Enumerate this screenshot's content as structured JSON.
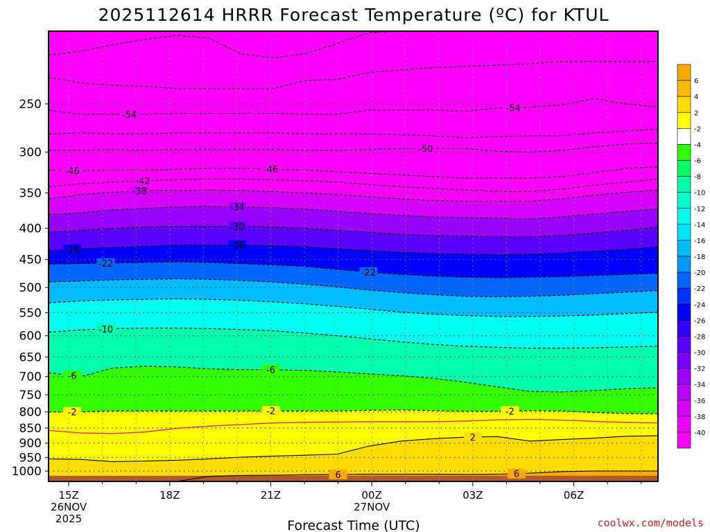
{
  "chart_data": {
    "type": "heatmap",
    "title": "2025112614 HRRR Forecast Temperature (ºC) for KTUL",
    "xlabel": "Forecast Time (UTC)",
    "ylabel": "",
    "credit": "coolwx.com/models",
    "x_range_hours": [
      -0.6,
      17.5
    ],
    "y_range_hpa": [
      1040,
      190
    ],
    "y_ticks": [
      250,
      300,
      350,
      400,
      450,
      500,
      550,
      600,
      650,
      700,
      750,
      800,
      850,
      900,
      950,
      1000
    ],
    "x_ticks": [
      {
        "hour": 0,
        "label": "15Z",
        "date": "26NOV",
        "year": "2025"
      },
      {
        "hour": 3,
        "label": "18Z",
        "date": "",
        "year": ""
      },
      {
        "hour": 6,
        "label": "21Z",
        "date": "",
        "year": ""
      },
      {
        "hour": 9,
        "label": "00Z",
        "date": "27NOV",
        "year": ""
      },
      {
        "hour": 12,
        "label": "03Z",
        "date": "",
        "year": ""
      },
      {
        "hour": 15,
        "label": "06Z",
        "date": "",
        "year": ""
      }
    ],
    "colorbar": {
      "levels": [
        -40,
        -38,
        -36,
        -34,
        -32,
        -30,
        -28,
        -26,
        -24,
        -22,
        -20,
        -18,
        -16,
        -14,
        -12,
        -10,
        -8,
        -6,
        -4,
        -2,
        2,
        4,
        6
      ],
      "colors": [
        "#ff00ff",
        "#ee00ff",
        "#d500ff",
        "#b800ff",
        "#9a00ff",
        "#7c00ff",
        "#5a00ff",
        "#3300ff",
        "#0000ff",
        "#0033ff",
        "#0066ff",
        "#0099ff",
        "#00bbff",
        "#00e5ff",
        "#00ffee",
        "#00ffcc",
        "#00ffaa",
        "#00ff66",
        "#33ff00",
        "#ffffff",
        "#ffff00",
        "#ffdd00",
        "#ffbb00",
        "#ffaa00"
      ]
    },
    "ground": {
      "pressure_hpa": 1018,
      "color": "#b05a2a"
    },
    "isotherms": [
      {
        "temp": -58,
        "p": [
          208,
          205,
          200,
          196,
          193,
          195,
          207,
          210,
          207,
          199,
          191,
          190,
          190,
          190,
          190,
          190,
          190,
          190,
          190,
          190
        ],
        "labels": []
      },
      {
        "temp": -56,
        "p": [
          226,
          231,
          233,
          234,
          236,
          236,
          236,
          236,
          229,
          228,
          222,
          220,
          218,
          217,
          216,
          215,
          213,
          213,
          213,
          213
        ],
        "labels": []
      },
      {
        "temp": -54,
        "p": [
          256,
          260,
          260,
          260,
          259,
          259,
          259,
          259,
          260,
          260,
          256,
          256,
          256,
          257,
          254,
          253,
          251,
          245,
          250,
          253
        ],
        "labels": [
          {
            "hour": 1.8,
            "text": "-54"
          },
          {
            "hour": 13.2,
            "text": "-54"
          }
        ]
      },
      {
        "temp": -52,
        "p": [
          280,
          279,
          280,
          280,
          279,
          279,
          279,
          279,
          280,
          280,
          280,
          281,
          282,
          284,
          283,
          282,
          282,
          279,
          277,
          275
        ],
        "labels": []
      },
      {
        "temp": -50,
        "p": [
          298,
          298,
          297,
          298,
          297,
          297,
          297,
          297,
          298,
          298,
          297,
          296,
          296,
          296,
          299,
          300,
          298,
          294,
          291,
          290
        ],
        "labels": [
          {
            "hour": 10.6,
            "text": "-50"
          }
        ]
      },
      {
        "temp": -46,
        "p": [
          321,
          322,
          321,
          321,
          320,
          319,
          319,
          320,
          321,
          323,
          325,
          327,
          329,
          331,
          331,
          331,
          329,
          324,
          319,
          317
        ],
        "labels": [
          {
            "hour": 0.1,
            "text": "-46"
          },
          {
            "hour": 6,
            "text": "-46"
          }
        ]
      },
      {
        "temp": -42,
        "p": [
          342,
          338,
          336,
          334,
          333,
          332,
          332,
          333,
          334,
          336,
          339,
          342,
          344,
          346,
          348,
          348,
          345,
          340,
          336,
          332
        ],
        "labels": [
          {
            "hour": 2.2,
            "text": "-42"
          }
        ]
      },
      {
        "temp": -38,
        "p": [
          358,
          352,
          349,
          347,
          347,
          346,
          347,
          348,
          350,
          352,
          355,
          358,
          360,
          361,
          361,
          361,
          358,
          353,
          349,
          346
        ],
        "labels": [
          {
            "hour": 2.1,
            "text": "-38"
          }
        ]
      },
      {
        "temp": -34,
        "p": [
          380,
          377,
          373,
          371,
          369,
          368,
          369,
          370,
          372,
          375,
          378,
          381,
          383,
          384,
          385,
          386,
          383,
          379,
          375,
          372
        ],
        "labels": [
          {
            "hour": 5,
            "text": "-34"
          }
        ]
      },
      {
        "temp": -30,
        "p": [
          406,
          403,
          400,
          398,
          397,
          397,
          397,
          398,
          400,
          403,
          406,
          409,
          411,
          412,
          413,
          413,
          411,
          407,
          403,
          398
        ],
        "labels": [
          {
            "hour": 5,
            "text": "-30"
          }
        ]
      },
      {
        "temp": -26,
        "p": [
          435,
          432,
          430,
          428,
          426,
          426,
          426,
          427,
          429,
          432,
          435,
          438,
          440,
          441,
          442,
          441,
          439,
          436,
          433,
          429
        ],
        "labels": [
          {
            "hour": 0.1,
            "text": "-26"
          },
          {
            "hour": 5,
            "text": "-26"
          }
        ]
      },
      {
        "temp": -22,
        "p": [
          458,
          457,
          456,
          455,
          454,
          455,
          457,
          459,
          462,
          467,
          472,
          476,
          479,
          481,
          482,
          481,
          480,
          478,
          476,
          474
        ],
        "labels": [
          {
            "hour": 1.1,
            "text": "-22"
          },
          {
            "hour": 8.9,
            "text": "-22"
          }
        ]
      },
      {
        "temp": -18,
        "p": [
          490,
          488,
          486,
          485,
          484,
          485,
          487,
          490,
          494,
          499,
          505,
          510,
          514,
          517,
          518,
          517,
          515,
          512,
          509,
          506
        ],
        "labels": []
      },
      {
        "temp": -14,
        "p": [
          530,
          526,
          524,
          523,
          522,
          523,
          525,
          528,
          532,
          537,
          543,
          549,
          553,
          556,
          558,
          558,
          557,
          555,
          552,
          549
        ],
        "labels": []
      },
      {
        "temp": -10,
        "p": [
          592,
          587,
          584,
          583,
          583,
          584,
          586,
          589,
          594,
          600,
          607,
          614,
          620,
          624,
          627,
          629,
          629,
          628,
          626,
          624
        ],
        "labels": [
          {
            "hour": 1.1,
            "text": "-10"
          }
        ]
      },
      {
        "temp": -6,
        "p": [
          690,
          700,
          678,
          673,
          675,
          680,
          682,
          682,
          684,
          688,
          693,
          698,
          705,
          715,
          728,
          740,
          742,
          738,
          733,
          730
        ],
        "labels": [
          {
            "hour": 0.1,
            "text": "-6"
          },
          {
            "hour": 6,
            "text": "-6"
          }
        ]
      },
      {
        "temp": -2,
        "p": [
          800,
          800,
          797,
          797,
          797,
          797,
          797,
          797,
          797,
          797,
          795,
          794,
          796,
          798,
          798,
          796,
          797,
          802,
          805,
          806
        ],
        "labels": [
          {
            "hour": 0.1,
            "text": "-2"
          },
          {
            "hour": 6,
            "text": "-2"
          },
          {
            "hour": 13.1,
            "text": "-2"
          }
        ]
      },
      {
        "temp": 0,
        "p": [
          858,
          866,
          868,
          863,
          851,
          844,
          839,
          834,
          832,
          831,
          830,
          830,
          830,
          828,
          824,
          823,
          825,
          829,
          832,
          834
        ],
        "labels": []
      },
      {
        "temp": 2,
        "p": [
          955,
          957,
          965,
          963,
          960,
          955,
          949,
          945,
          942,
          938,
          910,
          893,
          885,
          880,
          878,
          893,
          888,
          883,
          877,
          875
        ],
        "labels": [
          {
            "hour": 12,
            "text": "2"
          }
        ]
      },
      {
        "temp": 6,
        "p": [
          1040,
          1040,
          1040,
          1040,
          1040,
          1020,
          1017,
          1016,
          1014,
          1013,
          1012,
          1012,
          1012,
          1013,
          1012,
          1008,
          1002,
          1000,
          1000,
          1000
        ],
        "labels": [
          {
            "hour": 8,
            "text": "6"
          },
          {
            "hour": 13.3,
            "text": "6"
          }
        ]
      }
    ]
  }
}
